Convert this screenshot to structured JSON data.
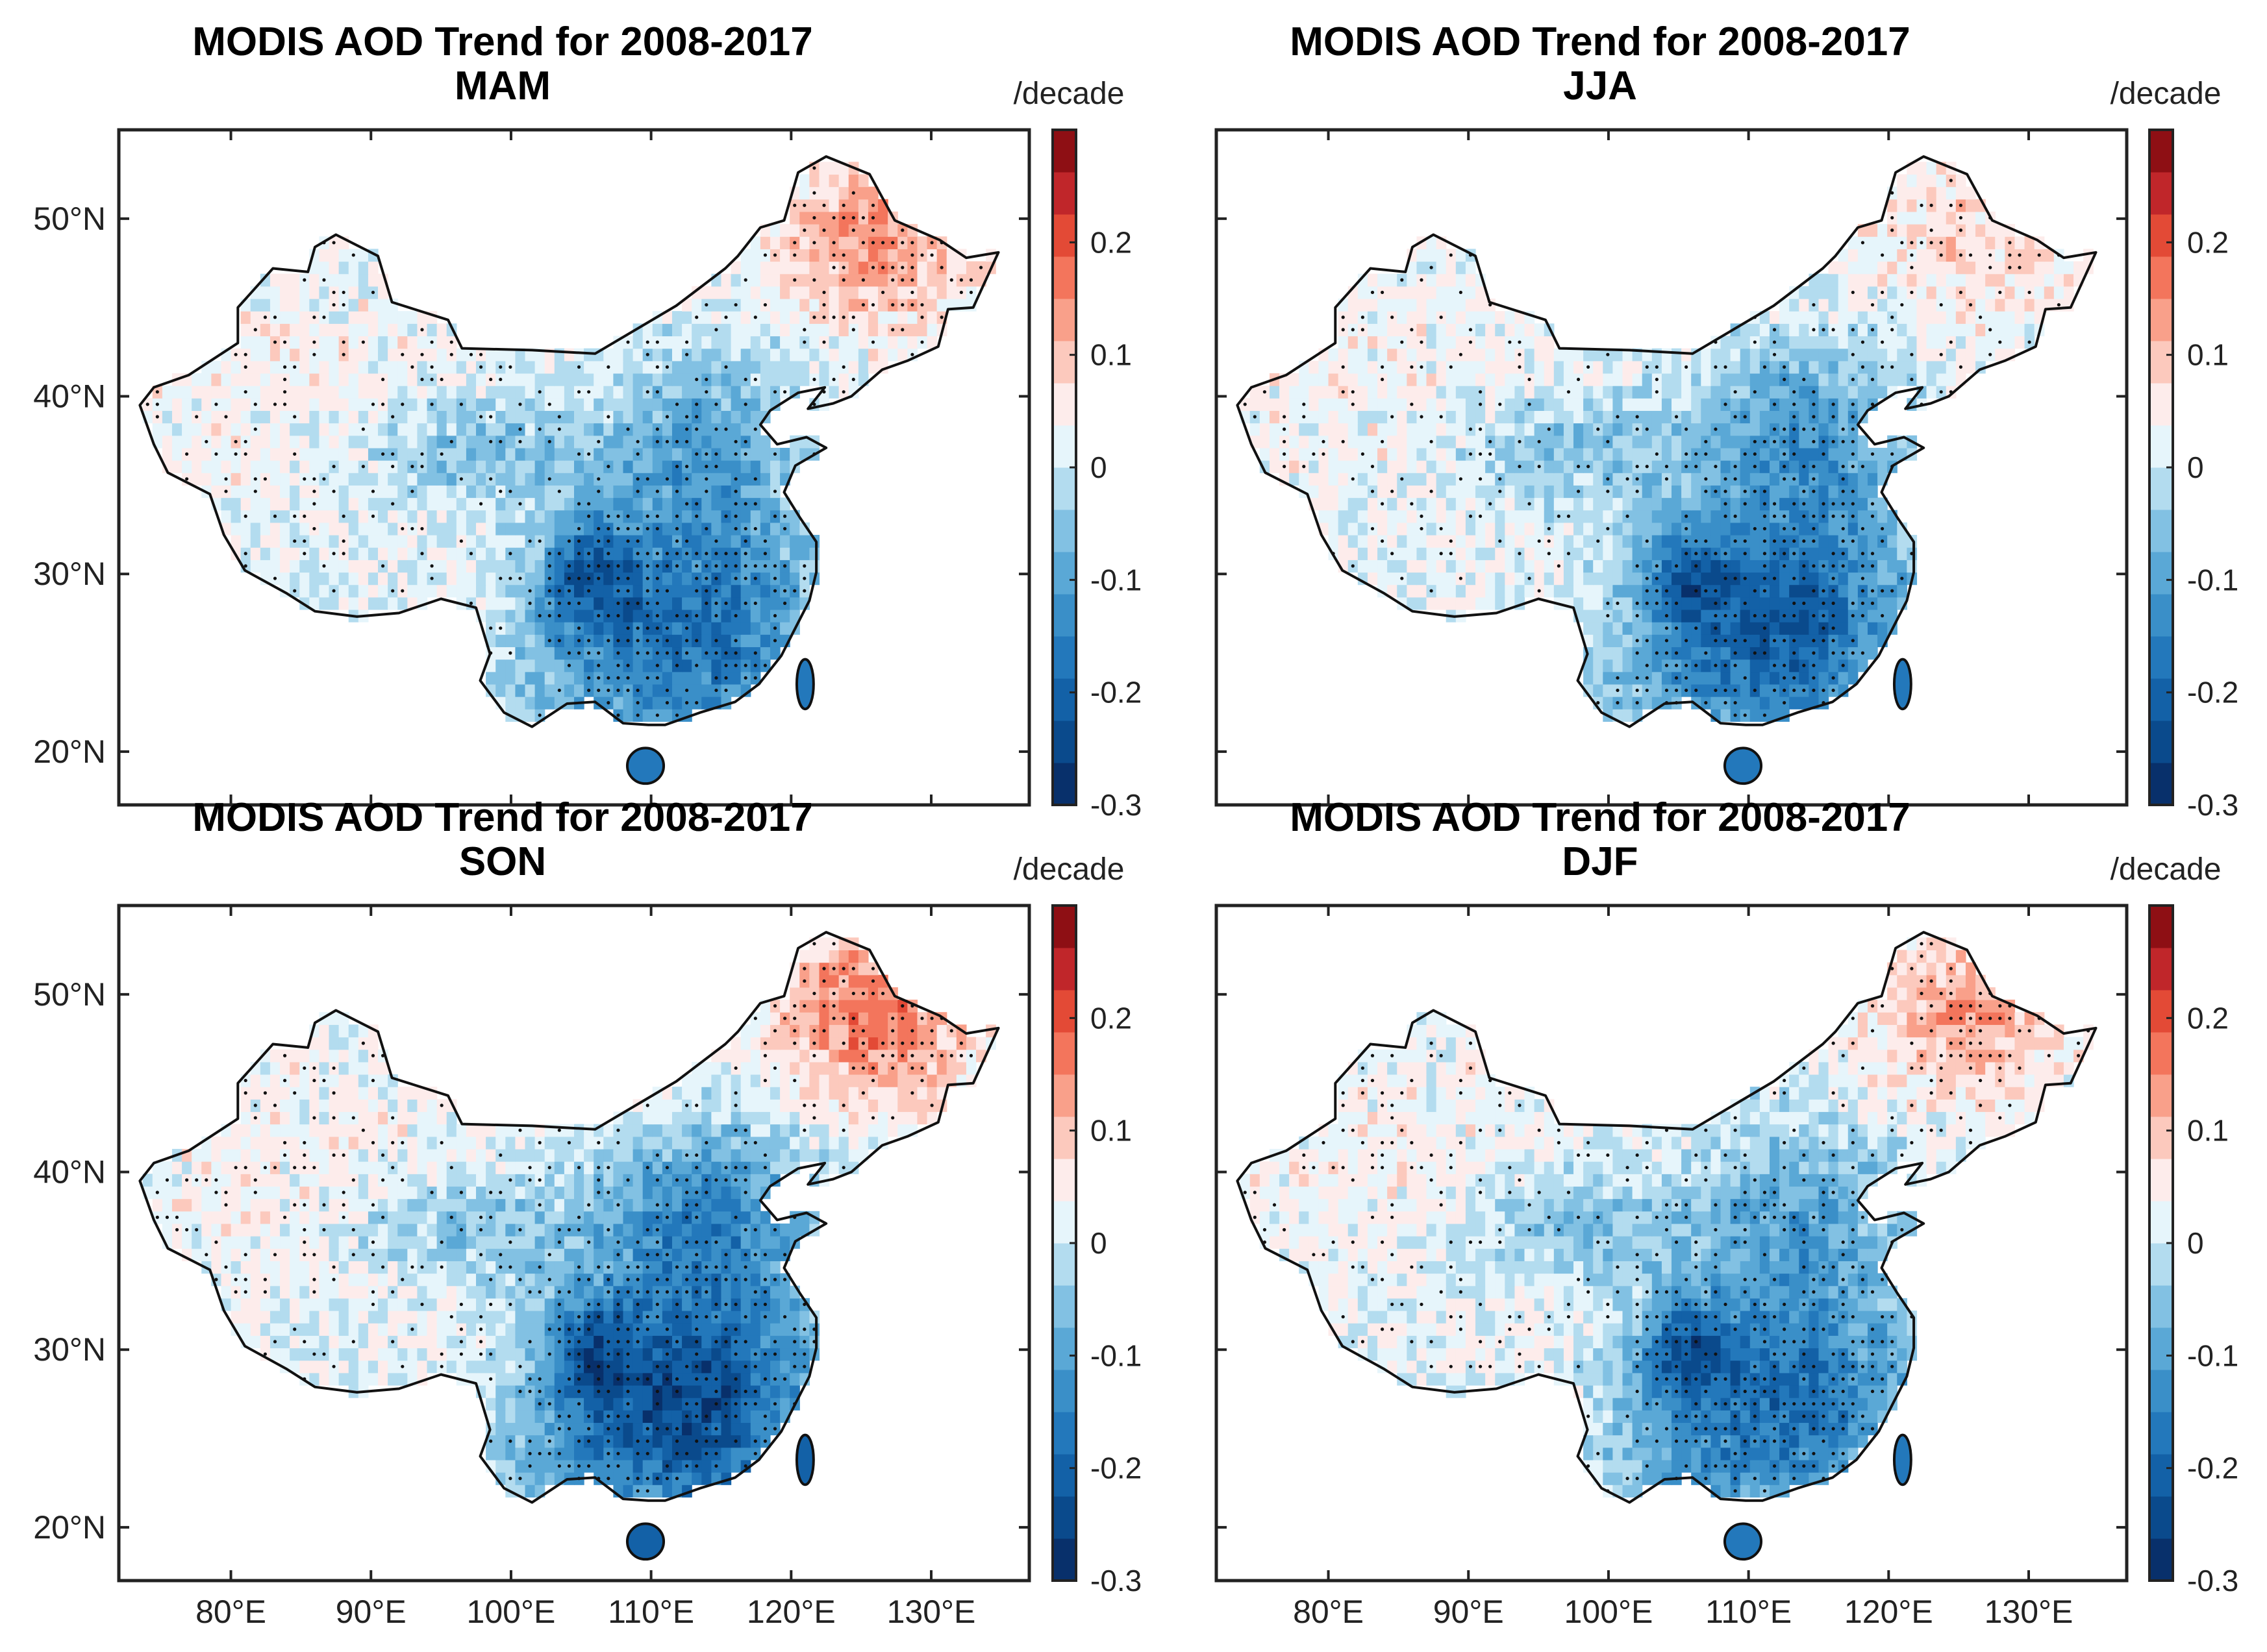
{
  "chart_data": {
    "type": "heatmap",
    "figure_title": "MODIS AOD Trend for 2008-2017",
    "units": "/decade",
    "colorbar": {
      "min": -0.3,
      "max": 0.3,
      "ticks": [
        0.2,
        0.1,
        0,
        -0.1,
        -0.2,
        -0.3
      ],
      "tick_labels": [
        "0.2",
        "0.1",
        "0",
        "-0.1",
        "-0.2",
        "-0.3"
      ],
      "colors": [
        "#08306b",
        "#0a4a8c",
        "#1361a7",
        "#2378bb",
        "#3a8fc8",
        "#5aa8d6",
        "#82c1e3",
        "#b3dcef",
        "#e6f5fb",
        "#fdeceb",
        "#fcc9bd",
        "#f9a08a",
        "#f3755c",
        "#e34a36",
        "#c0262a",
        "#8e0f14"
      ]
    },
    "x_axis": {
      "range": [
        72,
        137
      ],
      "ticks": [
        80,
        90,
        100,
        110,
        120,
        130
      ],
      "tick_labels": [
        "80°E",
        "90°E",
        "100°E",
        "110°E",
        "120°E",
        "130°E"
      ]
    },
    "y_axis": {
      "range": [
        17,
        55
      ],
      "ticks": [
        20,
        30,
        40,
        50
      ],
      "tick_labels": [
        "20°N",
        "30°N",
        "40°N",
        "50°N"
      ]
    },
    "panels": [
      {
        "title": "MODIS AOD Trend for 2008-2017",
        "season": "MAM",
        "northeast": 0.12,
        "southeast": -0.2,
        "sichuan": -0.28,
        "north_china": -0.1
      },
      {
        "title": "MODIS AOD Trend for 2008-2017",
        "season": "JJA",
        "northeast": 0.06,
        "southeast": -0.22,
        "sichuan": -0.27,
        "north_china": -0.12
      },
      {
        "title": "MODIS AOD Trend for 2008-2017",
        "season": "SON",
        "northeast": 0.15,
        "southeast": -0.26,
        "sichuan": -0.3,
        "north_china": -0.14
      },
      {
        "title": "MODIS AOD Trend for 2008-2017",
        "season": "DJF",
        "northeast": 0.11,
        "southeast": -0.2,
        "sichuan": -0.28,
        "north_china": -0.1
      }
    ],
    "significance_marker": "dots"
  }
}
